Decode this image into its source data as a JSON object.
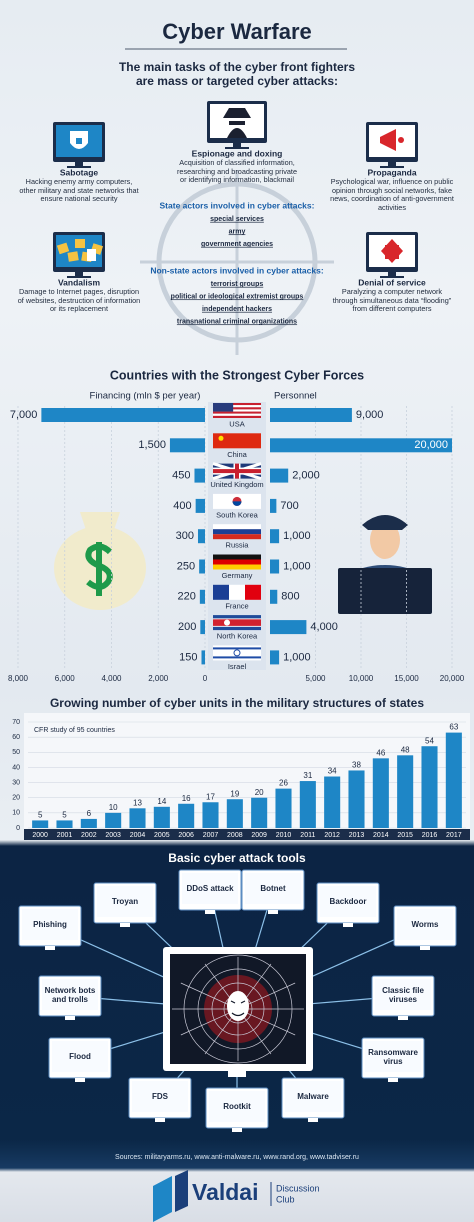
{
  "header": {
    "title": "Cyber Warfare",
    "subtitle": "The main tasks of the cyber front fighters are mass or targeted cyber attacks:"
  },
  "tasks": [
    {
      "name": "Sabotage",
      "description": "Hacking enemy army computers, other military and state networks that ensure national security"
    },
    {
      "name": "Espionage and doxing",
      "description": "Acquisition of classified information, researching and broadcasting private or identifying information, blackmail"
    },
    {
      "name": "Propaganda",
      "description": "Psychological war, influence on public opinion through social networks, fake news, coordination of anti-government activities"
    },
    {
      "name": "Vandalism",
      "description": "Damage to Internet pages, disruption of websites, destruction of information or its replacement"
    },
    {
      "name": "Denial of service",
      "description": "Paralyzing a computer network through simultaneous data “flooding” from different computers"
    }
  ],
  "actors": {
    "state": {
      "title": "State actors involved in cyber attacks:",
      "items": [
        "special services",
        "army",
        "government agencies"
      ]
    },
    "non_state": {
      "title": "Non-state actors involved in cyber attacks:",
      "items": [
        "terrorist groups",
        "political or ideological extremist groups",
        "independent hackers",
        "transnational criminal organizations"
      ]
    }
  },
  "chart_data": [
    {
      "type": "butterfly",
      "title": "Countries with the Strongest Cyber Forces",
      "categories": [
        "USA",
        "China",
        "United Kingdom",
        "South Korea",
        "Russia",
        "Germany",
        "France",
        "North Korea",
        "Israel"
      ],
      "series": [
        {
          "name": "Financing (mln $ per year)",
          "color": "#1e86c6",
          "values": [
            7000,
            1500,
            450,
            400,
            300,
            250,
            220,
            200,
            150
          ],
          "value_labels": [
            "7,000",
            "1,500",
            "450",
            "400",
            "300",
            "250",
            "220",
            "200",
            "150"
          ]
        },
        {
          "name": "Personnel",
          "color": "#1e86c6",
          "axis": "x2",
          "values": [
            9000,
            20000,
            2000,
            700,
            1000,
            1000,
            800,
            4000,
            1000
          ],
          "value_labels": [
            "9,000",
            "20,000",
            "2,000",
            "700",
            "1,000",
            "1,000",
            "800",
            "4,000",
            "1,000"
          ]
        }
      ],
      "xlim": [
        8000,
        0
      ],
      "xticks": [
        {
          "value": 8000,
          "label": "8,000"
        },
        {
          "value": 6000,
          "label": "6,000"
        },
        {
          "value": 4000,
          "label": "4,000"
        },
        {
          "value": 2000,
          "label": "2,000"
        },
        0
      ],
      "x2lim": [
        0,
        20000
      ],
      "x2ticks": [
        {
          "value": 5000,
          "label": "5,000"
        },
        {
          "value": 10000,
          "label": "10,000"
        },
        {
          "value": 15000,
          "label": "15,000"
        },
        {
          "value": 20000,
          "label": "20,000"
        }
      ],
      "grid": true
    },
    {
      "type": "bar",
      "title": "Growing number of cyber units in the military structures of states",
      "annotation": "CFR study of 95 countries",
      "categories": [
        "2000",
        "2001",
        "2002",
        "2003",
        "2004",
        "2005",
        "2006",
        "2007",
        "2008",
        "2009",
        "2010",
        "2011",
        "2012",
        "2013",
        "2014",
        "2015",
        "2016",
        "2017"
      ],
      "values": [
        5,
        5,
        6,
        10,
        13,
        14,
        16,
        17,
        19,
        20,
        26,
        31,
        34,
        38,
        46,
        48,
        54,
        63
      ],
      "color": "#1e86c6",
      "ylim": [
        0,
        70
      ],
      "yticks": [
        0,
        10,
        20,
        30,
        40,
        50,
        60,
        70
      ],
      "grid": true
    }
  ],
  "tools": {
    "title": "Basic cyber attack tools",
    "items": [
      "Troyan",
      "DDoS attack",
      "Botnet",
      "Backdoor",
      "Phishing",
      "Worms",
      "Network bots and trolls",
      "Classic file viruses",
      "Flood",
      "Ransomware virus",
      "FDS",
      "Rootkit",
      "Malware"
    ]
  },
  "sources": "Sources: militaryarms.ru, www.anti-malware.ru, www.rand.org, www.tadviser.ru",
  "logo": {
    "name": "Valdai",
    "tagline": [
      "Discussion",
      "Club"
    ]
  }
}
